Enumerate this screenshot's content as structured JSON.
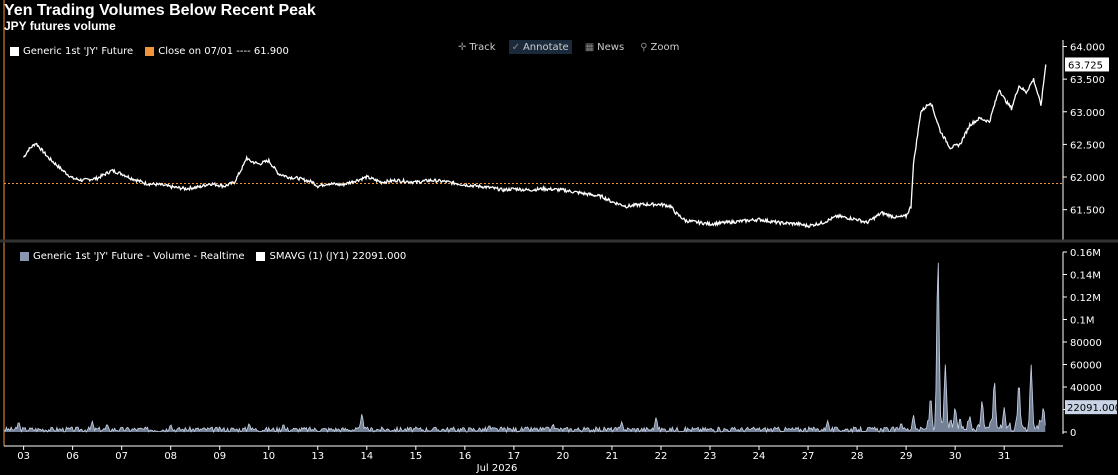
{
  "header": {
    "title": "Yen Trading Volumes Below Recent Peak",
    "subtitle": "JPY futures volume"
  },
  "toolbar": {
    "items": [
      {
        "label": "Track",
        "icon": "crosshair-icon",
        "glyph": "✛"
      },
      {
        "label": "Annotate",
        "icon": "pencil-icon",
        "glyph": "✓"
      },
      {
        "label": "News",
        "icon": "news-icon",
        "glyph": "▦"
      },
      {
        "label": "Zoom",
        "icon": "magnifier-icon",
        "glyph": "⚲"
      }
    ]
  },
  "upper_legend": {
    "series_label": "Generic 1st 'JY' Future",
    "close_label": "Close on 07/01 ---- 61.900"
  },
  "lower_legend": {
    "series_label": "Generic 1st 'JY' Future - Volume - Realtime",
    "smavg_label": "SMAVG (1) (JY1) 22091.000"
  },
  "chart_data": [
    {
      "type": "line",
      "series": [
        {
          "name": "Generic 1st 'JY' Future",
          "x": [
            0.0,
            0.1,
            0.25,
            0.5,
            0.8,
            1.0,
            1.2,
            1.5,
            1.8,
            2.0,
            2.2,
            2.5,
            2.8,
            3.0,
            3.3,
            3.6,
            3.8,
            4.1,
            4.3,
            4.5,
            4.55,
            4.6,
            4.8,
            5.0,
            5.2,
            5.4,
            5.6,
            5.9,
            6.0,
            6.2,
            6.5,
            6.8,
            7.0,
            7.3,
            7.6,
            8.0,
            8.3,
            8.6,
            9.0,
            9.4,
            9.8,
            10.0,
            10.3,
            10.6,
            11.0,
            11.4,
            11.8,
            12.0,
            12.3,
            12.6,
            13.0,
            13.2,
            13.3,
            13.5,
            13.8,
            14.0,
            14.3,
            14.6,
            15.0,
            15.4,
            15.8,
            16.0,
            16.3,
            16.6,
            17.0,
            17.2,
            17.5,
            17.8,
            18.0,
            18.1,
            18.15,
            18.3,
            18.5,
            18.7,
            18.9,
            19.1,
            19.3,
            19.5,
            19.7,
            19.8,
            19.9,
            20.0,
            20.15,
            20.3,
            20.45,
            20.6,
            20.75,
            20.85
          ],
          "values": [
            62.3,
            62.42,
            62.52,
            62.3,
            62.1,
            61.98,
            61.95,
            61.98,
            62.1,
            62.05,
            61.98,
            61.9,
            61.88,
            61.85,
            61.82,
            61.85,
            61.9,
            61.86,
            61.92,
            62.2,
            62.3,
            62.25,
            62.2,
            62.25,
            62.05,
            62.0,
            61.98,
            61.92,
            61.86,
            61.9,
            61.88,
            61.95,
            62.0,
            61.92,
            61.95,
            61.92,
            61.95,
            61.93,
            61.88,
            61.85,
            61.8,
            61.82,
            61.8,
            61.82,
            61.8,
            61.75,
            61.7,
            61.62,
            61.55,
            61.58,
            61.58,
            61.55,
            61.45,
            61.33,
            61.3,
            61.28,
            61.3,
            61.32,
            61.35,
            61.3,
            61.28,
            61.25,
            61.3,
            61.4,
            61.35,
            61.3,
            61.45,
            61.38,
            61.4,
            61.55,
            62.2,
            63.0,
            63.15,
            62.7,
            62.45,
            62.5,
            62.8,
            62.9,
            62.85,
            63.1,
            63.35,
            63.2,
            63.05,
            63.4,
            63.3,
            63.5,
            63.1,
            63.725
          ]
        }
      ],
      "reference_line": {
        "label": "Close on 07/01",
        "value": 61.9
      },
      "last_value_label": "63.725",
      "y_ticks": [
        "61.500",
        "62.000",
        "62.500",
        "63.000",
        "63.500",
        "64.000"
      ],
      "ylim": [
        61.05,
        64.1
      ],
      "xlim": [
        -0.4,
        21.2
      ],
      "grid": false,
      "legend_position": "top-left"
    },
    {
      "type": "area",
      "series": [
        {
          "name": "Generic 1st 'JY' Future - Volume - Realtime"
        },
        {
          "name": "SMAVG (1) (JY1) 22091.000"
        }
      ],
      "baseline_noise_max": 4500,
      "spikes": [
        {
          "x": -0.1,
          "value": 9000
        },
        {
          "x": 1.4,
          "value": 9500
        },
        {
          "x": 1.7,
          "value": 7000
        },
        {
          "x": 3.0,
          "value": 6500
        },
        {
          "x": 4.6,
          "value": 7500
        },
        {
          "x": 5.3,
          "value": 7000
        },
        {
          "x": 6.9,
          "value": 16000
        },
        {
          "x": 9.5,
          "value": 6000
        },
        {
          "x": 10.8,
          "value": 7000
        },
        {
          "x": 12.2,
          "value": 9000
        },
        {
          "x": 12.9,
          "value": 13000
        },
        {
          "x": 16.4,
          "value": 10000
        },
        {
          "x": 17.9,
          "value": 8000
        },
        {
          "x": 18.15,
          "value": 15000
        },
        {
          "x": 18.5,
          "value": 31000
        },
        {
          "x": 18.65,
          "value": 155000
        },
        {
          "x": 18.8,
          "value": 60000
        },
        {
          "x": 19.0,
          "value": 22000
        },
        {
          "x": 19.3,
          "value": 14000
        },
        {
          "x": 19.55,
          "value": 28000
        },
        {
          "x": 19.8,
          "value": 46000
        },
        {
          "x": 20.0,
          "value": 22000
        },
        {
          "x": 20.3,
          "value": 44000
        },
        {
          "x": 20.55,
          "value": 60000
        },
        {
          "x": 20.8,
          "value": 22091
        }
      ],
      "last_value_label": "22091.000",
      "y_ticks": [
        "0",
        "20000",
        "40000",
        "60000",
        "80000",
        "0.1M",
        "0.12M",
        "0.14M",
        "0.16M"
      ],
      "ylim": [
        0,
        160000
      ],
      "xlim": [
        -0.4,
        21.2
      ],
      "x_ticks": [
        "03",
        "06",
        "07",
        "08",
        "09",
        "10",
        "13",
        "14",
        "15",
        "16",
        "17",
        "20",
        "21",
        "22",
        "23",
        "24",
        "27",
        "28",
        "29",
        "30",
        "31"
      ],
      "x_axis_label": "Jul 2026",
      "grid": false,
      "legend_position": "top-left"
    }
  ],
  "colors": {
    "line": "#ffffff",
    "reference": "#f2943a",
    "volume_fill": "#8896b0",
    "volume_line": "#c9d3e6",
    "axis": "#ffffff",
    "panel_divider": "#333333"
  }
}
